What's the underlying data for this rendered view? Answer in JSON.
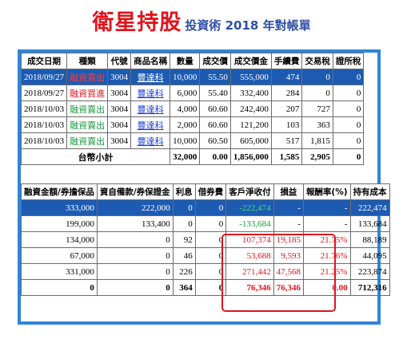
{
  "title": {
    "main": "衛星持股",
    "sub": "投資術 2018 年對帳單"
  },
  "trades": {
    "headers": [
      "成交日期",
      "種類",
      "代號",
      "商品名稱",
      "數量",
      "成交價",
      "成交價金",
      "手續費",
      "交易稅",
      "證所稅"
    ],
    "rows": [
      [
        "2018/09/27",
        "融資賣出",
        "3004",
        "豐達科",
        "10,000",
        "55.50",
        "555,000",
        "474",
        "0",
        "0"
      ],
      [
        "2018/09/27",
        "融資買進",
        "3004",
        "豐達科",
        "6,000",
        "55.40",
        "332,400",
        "284",
        "0",
        "0"
      ],
      [
        "2018/10/03",
        "融資賣出",
        "3004",
        "豐達科",
        "4,000",
        "60.60",
        "242,400",
        "207",
        "727",
        "0"
      ],
      [
        "2018/10/03",
        "融資賣出",
        "3004",
        "豐達科",
        "2,000",
        "60.60",
        "121,200",
        "103",
        "363",
        "0"
      ],
      [
        "2018/10/03",
        "融資賣出",
        "3004",
        "豐達科",
        "10,000",
        "60.50",
        "605,000",
        "517",
        "1,815",
        "0"
      ]
    ],
    "total": {
      "label": "台幣小計",
      "qty": "32,000",
      "price": "0.00",
      "amount": "1,856,000",
      "fee": "1,585",
      "tax": "2,905",
      "cgt": "0"
    }
  },
  "settlement": {
    "headers": [
      "融資金額/券擔保品",
      "資自備款/券保證金",
      "利息",
      "借券費",
      "客戶淨收付",
      "損益",
      "報酬率(%)",
      "持有成本"
    ],
    "rows": [
      [
        "333,000",
        "222,000",
        "0",
        "0",
        "-222,474",
        "-",
        "-",
        "222,474"
      ],
      [
        "199,000",
        "133,400",
        "0",
        "0",
        "-133,684",
        "-",
        "-",
        "133,684"
      ],
      [
        "134,000",
        "0",
        "92",
        "0",
        "107,374",
        "19,185",
        "21.75%",
        "88,189"
      ],
      [
        "67,000",
        "0",
        "46",
        "0",
        "53,688",
        "9,593",
        "21.76%",
        "44,095"
      ],
      [
        "331,000",
        "0",
        "226",
        "0",
        "271,442",
        "47,568",
        "21.25%",
        "223,874"
      ]
    ],
    "total": [
      "0",
      "0",
      "364",
      "0",
      "76,346",
      "76,346",
      "0.00",
      "712,316"
    ]
  },
  "colors": {
    "title_red": "#e0141c",
    "subtitle_blue": "#2f4fa6",
    "frame_blue": "#2f86d6",
    "highlight_row": "#1d5bb2"
  }
}
